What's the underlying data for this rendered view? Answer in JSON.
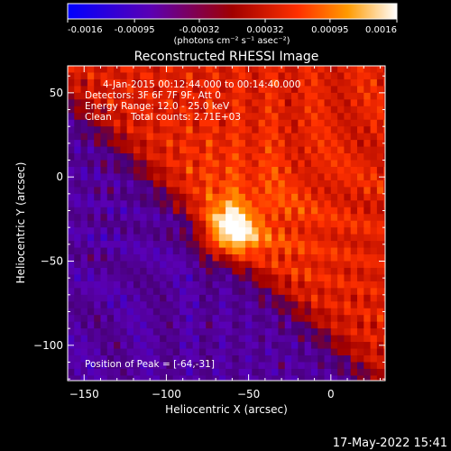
{
  "chart_data": {
    "type": "heatmap",
    "title": "Reconstructed RHESSI Image",
    "xlabel": "Heliocentric X (arcsec)",
    "ylabel": "Heliocentric Y (arcsec)",
    "xlim": [
      -160,
      33
    ],
    "ylim": [
      -121,
      66
    ],
    "x_ticks": [
      -150,
      -100,
      -50,
      0
    ],
    "y_ticks": [
      -100,
      -50,
      0,
      50
    ],
    "colorbar": {
      "min": -0.0016,
      "max": 0.0016,
      "tick_values": [
        -0.0016,
        -0.00095,
        -0.00032,
        0.00032,
        0.00095,
        0.0016
      ],
      "tick_labels": [
        "-0.0016",
        "-0.00095",
        "-0.00032",
        "0.00032",
        "0.00095",
        "0.0016"
      ],
      "unit_label": "(photons cm⁻² s⁻¹ asec⁻²)"
    },
    "annotations": {
      "time_range": "4-Jan-2015 00:12:44.000 to 00:14:40.000",
      "detectors": "Detectors: 3F 6F 7F 9F, Att 0",
      "energy": "Energy Range: 12.0 - 25.0 keV",
      "method": "Clean",
      "counts": "Total counts: 2.71E+03",
      "peak": "Position of Peak = [-64,-31]"
    },
    "peak_position": [
      -64,
      -31
    ],
    "grid": false
  },
  "footer": {
    "timestamp": "17-May-2022 15:41"
  }
}
